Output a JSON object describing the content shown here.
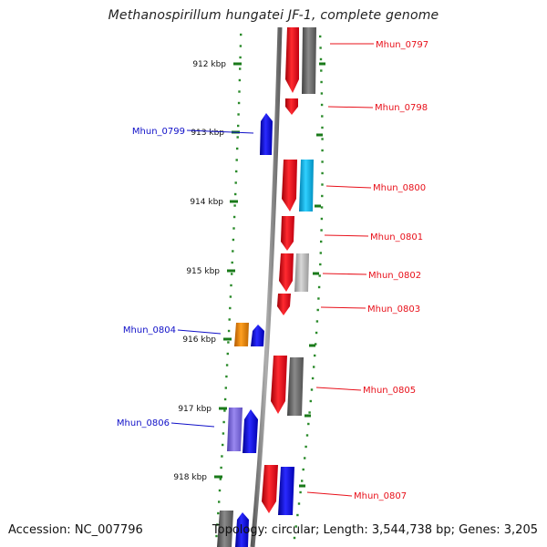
{
  "title": "Methanospirillum hungatei JF-1, complete genome",
  "footer": {
    "accession": "Accession: NC_007796",
    "summary": "Topology: circular; Length: 3,544,738 bp; Genes: 3,205"
  },
  "ticks": [
    {
      "label": "912 kbp",
      "kbp": 912
    },
    {
      "label": "913 kbp",
      "kbp": 913
    },
    {
      "label": "914 kbp",
      "kbp": 914
    },
    {
      "label": "915 kbp",
      "kbp": 915
    },
    {
      "label": "916 kbp",
      "kbp": 916
    },
    {
      "label": "917 kbp",
      "kbp": 917
    },
    {
      "label": "918 kbp",
      "kbp": 918
    }
  ],
  "genes": [
    {
      "label": "Mhun_0797",
      "side": "right",
      "color": "#e8101a"
    },
    {
      "label": "Mhun_0798",
      "side": "right",
      "color": "#e8101a"
    },
    {
      "label": "Mhun_0799",
      "side": "left",
      "color": "#1010c8"
    },
    {
      "label": "Mhun_0800",
      "side": "right",
      "color": "#e8101a"
    },
    {
      "label": "Mhun_0801",
      "side": "right",
      "color": "#e8101a"
    },
    {
      "label": "Mhun_0802",
      "side": "right",
      "color": "#e8101a"
    },
    {
      "label": "Mhun_0803",
      "side": "right",
      "color": "#e8101a"
    },
    {
      "label": "Mhun_0804",
      "side": "left",
      "color": "#1010c8"
    },
    {
      "label": "Mhun_0805",
      "side": "right",
      "color": "#e8101a"
    },
    {
      "label": "Mhun_0806",
      "side": "left",
      "color": "#1010c8"
    },
    {
      "label": "Mhun_0807",
      "side": "right",
      "color": "#e8101a"
    }
  ],
  "colors": {
    "forward_gene": "#e8101a",
    "reverse_gene": "#1010c8",
    "orange_gene": "#f08a00",
    "cyan_gene": "#10b8e8",
    "gray_gene": "#707070",
    "light_gray_gene": "#b4b4b4",
    "lavender_gene": "#7a68d8",
    "scale_dots": "#2a8a2a",
    "backbone": "#808080"
  }
}
